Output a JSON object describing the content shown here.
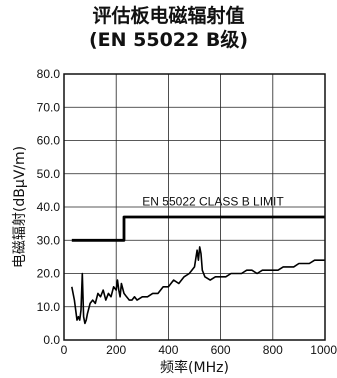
{
  "chart_data": {
    "type": "line",
    "title": "评估板电磁辐射值",
    "subtitle": "(EN 55022 B级)",
    "xlabel": "频率(MHz)",
    "ylabel": "电磁辐射(dBμV/m)",
    "xlim": [
      0,
      1000
    ],
    "ylim": [
      0,
      80
    ],
    "x_ticks": [
      "0",
      "200",
      "400",
      "600",
      "800",
      "1000"
    ],
    "y_ticks": [
      "0.0",
      "10.0",
      "20.0",
      "30.0",
      "40.0",
      "50.0",
      "60.0",
      "70.0",
      "80.0"
    ],
    "grid": true,
    "annotation": "EN 55022 CLASS B LIMIT",
    "series": [
      {
        "role": "limit",
        "x": [
          30,
          230,
          230,
          1000
        ],
        "y": [
          30,
          30,
          37,
          37
        ]
      },
      {
        "role": "emission",
        "x": [
          30,
          40,
          50,
          55,
          60,
          65,
          70,
          75,
          80,
          85,
          90,
          100,
          110,
          120,
          130,
          140,
          150,
          160,
          170,
          180,
          190,
          200,
          205,
          210,
          215,
          220,
          230,
          240,
          250,
          260,
          270,
          280,
          300,
          320,
          340,
          360,
          380,
          400,
          420,
          440,
          460,
          480,
          500,
          510,
          515,
          520,
          525,
          530,
          540,
          560,
          580,
          600,
          620,
          640,
          660,
          680,
          700,
          720,
          740,
          760,
          780,
          800,
          820,
          840,
          860,
          880,
          900,
          920,
          940,
          960,
          980,
          1000
        ],
        "y": [
          16,
          12,
          6,
          7,
          6,
          9,
          20,
          7,
          5,
          6,
          8,
          11,
          12,
          11,
          14,
          13,
          15,
          12,
          14,
          13,
          16,
          15,
          18,
          15,
          13,
          17,
          14,
          13,
          12,
          12,
          13,
          12,
          13,
          13,
          14,
          14,
          16,
          16,
          18,
          17,
          19,
          20,
          22,
          27,
          24,
          28,
          26,
          21,
          19,
          18,
          19,
          19,
          19,
          20,
          20,
          20,
          21,
          21,
          20,
          21,
          21,
          21,
          21,
          22,
          22,
          22,
          23,
          23,
          23,
          24,
          24,
          24
        ]
      }
    ]
  }
}
